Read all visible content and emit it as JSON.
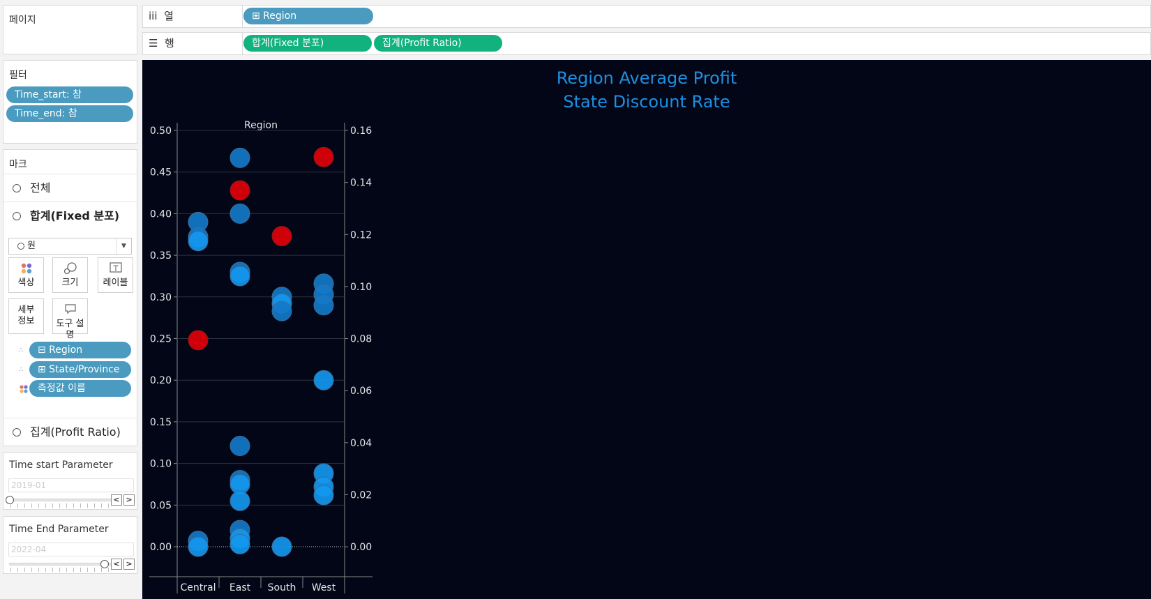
{
  "pages": {
    "title": "페이지"
  },
  "shelves": {
    "columns": {
      "label": "열",
      "icon": "iii",
      "pills": [
        "⊞ Region"
      ]
    },
    "rows": {
      "label": "행",
      "icon": "☰",
      "pills": [
        "합계(Fixed 분포)",
        "집계(Profit Ratio)"
      ]
    }
  },
  "filters": {
    "title": "필터",
    "items": [
      "Time_start: 참",
      "Time_end: 참"
    ]
  },
  "marks": {
    "title": "마크",
    "rows": [
      "전체",
      "합계(Fixed 분포)",
      "집계(Profit Ratio)"
    ],
    "mark_type": "원",
    "buttons": {
      "color": "색상",
      "size": "크기",
      "label": "레이블",
      "detail_1": "세부",
      "detail_2": "정보",
      "tooltip": "도구 설명"
    },
    "fields": [
      "⊟ Region",
      "⊞ State/Province",
      "측정값 이름"
    ]
  },
  "params": {
    "start": {
      "title": "Time start Parameter",
      "value": "2019-01"
    },
    "end": {
      "title": "Time End Parameter",
      "value": "2022-04"
    }
  },
  "viz": {
    "title_line1": "Region Average Profit",
    "title_line2": "State Discount Rate",
    "header": "Region"
  },
  "colors": {
    "red": "#d0000a",
    "blue_dark": "#1478c8",
    "blue_light": "#1497ee",
    "accent": "#1f8fe0"
  },
  "chart_data": {
    "type": "scatter",
    "categories": [
      "Central",
      "East",
      "South",
      "West"
    ],
    "left_axis": {
      "ticks": [
        "0.50",
        "0.45",
        "0.40",
        "0.35",
        "0.30",
        "0.25",
        "0.20",
        "0.15",
        "0.10",
        "0.05",
        "0.00"
      ],
      "range": [
        -0.036,
        0.5
      ]
    },
    "right_axis": {
      "ticks": [
        "0.16",
        "0.14",
        "0.12",
        "0.10",
        "0.08",
        "0.06",
        "0.04",
        "0.02",
        "0.00"
      ],
      "range": [
        -0.0115,
        0.16
      ]
    },
    "red_points": [
      {
        "category": "Central",
        "y": 0.248
      },
      {
        "category": "East",
        "y": 0.428
      },
      {
        "category": "South",
        "y": 0.373
      },
      {
        "category": "West",
        "y": 0.468
      }
    ],
    "blue_points": [
      {
        "category": "Central",
        "y": 0.39,
        "tone": "dark"
      },
      {
        "category": "Central",
        "y": 0.372,
        "tone": "dark"
      },
      {
        "category": "Central",
        "y": 0.367,
        "tone": "light"
      },
      {
        "category": "Central",
        "y": 0.007,
        "tone": "dark"
      },
      {
        "category": "Central",
        "y": 0.0,
        "tone": "light"
      },
      {
        "category": "East",
        "y": 0.467,
        "tone": "dark"
      },
      {
        "category": "East",
        "y": 0.4,
        "tone": "dark"
      },
      {
        "category": "East",
        "y": 0.33,
        "tone": "dark"
      },
      {
        "category": "East",
        "y": 0.325,
        "tone": "light"
      },
      {
        "category": "East",
        "y": 0.121,
        "tone": "dark"
      },
      {
        "category": "East",
        "y": 0.08,
        "tone": "dark"
      },
      {
        "category": "East",
        "y": 0.075,
        "tone": "light"
      },
      {
        "category": "East",
        "y": 0.055,
        "tone": "light"
      },
      {
        "category": "East",
        "y": 0.02,
        "tone": "dark"
      },
      {
        "category": "East",
        "y": 0.01,
        "tone": "light"
      },
      {
        "category": "East",
        "y": 0.003,
        "tone": "light"
      },
      {
        "category": "South",
        "y": 0.3,
        "tone": "dark"
      },
      {
        "category": "South",
        "y": 0.292,
        "tone": "light"
      },
      {
        "category": "South",
        "y": 0.283,
        "tone": "dark"
      },
      {
        "category": "South",
        "y": 0.0,
        "tone": "light"
      },
      {
        "category": "West",
        "y": 0.316,
        "tone": "dark"
      },
      {
        "category": "West",
        "y": 0.303,
        "tone": "dark"
      },
      {
        "category": "West",
        "y": 0.29,
        "tone": "dark"
      },
      {
        "category": "West",
        "y": 0.2,
        "tone": "light"
      },
      {
        "category": "West",
        "y": 0.088,
        "tone": "light"
      },
      {
        "category": "West",
        "y": 0.072,
        "tone": "light"
      },
      {
        "category": "West",
        "y": 0.062,
        "tone": "light"
      }
    ]
  }
}
